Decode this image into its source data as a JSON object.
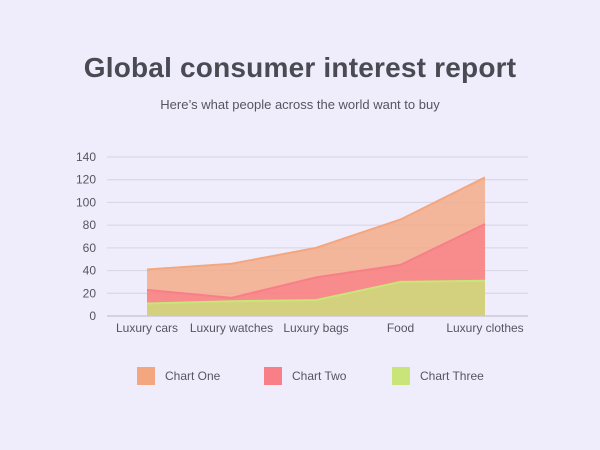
{
  "header": {
    "title": "Global consumer interest report",
    "subtitle": "Here’s what people across the world want to buy"
  },
  "chart_data": {
    "type": "area",
    "title": "Global consumer interest report",
    "subtitle": "Here’s what people across the world want to buy",
    "categories": [
      "Luxury cars",
      "Luxury watches",
      "Luxury bags",
      "Food",
      "Luxury clothes"
    ],
    "series": [
      {
        "name": "Chart One",
        "values": [
          41,
          46,
          60,
          85,
          122
        ],
        "color": "#f4a77f"
      },
      {
        "name": "Chart Two",
        "values": [
          23,
          16,
          34,
          45,
          81
        ],
        "color": "#f87f88"
      },
      {
        "name": "Chart Three",
        "values": [
          11,
          13,
          14,
          30,
          31
        ],
        "color": "#c9e57a"
      }
    ],
    "yticks": [
      0,
      20,
      40,
      60,
      80,
      100,
      120,
      140
    ],
    "ylim": [
      0,
      140
    ],
    "xlabel": "",
    "ylabel": "",
    "grid": true,
    "legend_position": "bottom"
  }
}
